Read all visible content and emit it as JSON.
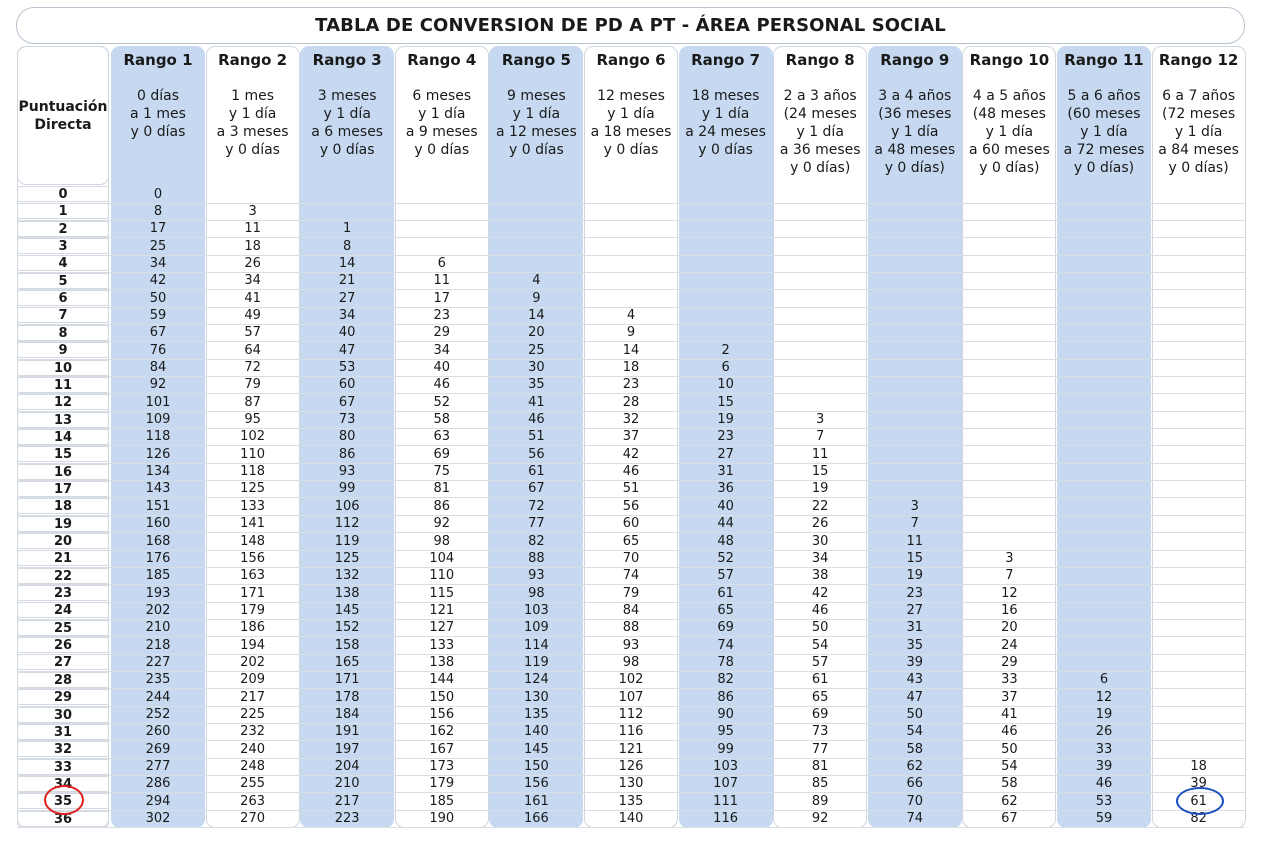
{
  "title": "TABLA DE CONVERSION DE PD A PT - ÁREA PERSONAL SOCIAL",
  "pd_header": "Puntuación\nDirecta",
  "ranges": [
    {
      "label": "Rango 1",
      "age": "0 días\na 1 mes\ny 0 días",
      "start": 0,
      "values": [
        0,
        8,
        17,
        25,
        34,
        42,
        50,
        59,
        67,
        76,
        84,
        92,
        101,
        109,
        118,
        126,
        134,
        143,
        151,
        160,
        168,
        176,
        185,
        193,
        202,
        210,
        218,
        227,
        235,
        244,
        252,
        260,
        269,
        277,
        286,
        294,
        302
      ]
    },
    {
      "label": "Rango 2",
      "age": "1 mes\ny 1 día\na 3 meses\ny 0 días",
      "start": 1,
      "values": [
        3,
        11,
        18,
        26,
        34,
        41,
        49,
        57,
        64,
        72,
        79,
        87,
        95,
        102,
        110,
        118,
        125,
        133,
        141,
        148,
        156,
        163,
        171,
        179,
        186,
        194,
        202,
        209,
        217,
        225,
        232,
        240,
        248,
        255,
        263,
        270
      ]
    },
    {
      "label": "Rango 3",
      "age": "3 meses\ny 1 día\na 6 meses\ny 0 días",
      "start": 2,
      "values": [
        1,
        8,
        14,
        21,
        27,
        34,
        40,
        47,
        53,
        60,
        67,
        73,
        80,
        86,
        93,
        99,
        106,
        112,
        119,
        125,
        132,
        138,
        145,
        152,
        158,
        165,
        171,
        178,
        184,
        191,
        197,
        204,
        210,
        217,
        223
      ]
    },
    {
      "label": "Rango 4",
      "age": "6 meses\ny 1 día\na 9 meses\ny 0 días",
      "start": 4,
      "values": [
        6,
        11,
        17,
        23,
        29,
        34,
        40,
        46,
        52,
        58,
        63,
        69,
        75,
        81,
        86,
        92,
        98,
        104,
        110,
        115,
        121,
        127,
        133,
        138,
        144,
        150,
        156,
        162,
        167,
        173,
        179,
        185,
        190
      ]
    },
    {
      "label": "Rango 5",
      "age": "9 meses\ny 1 día\na 12 meses\ny 0 días",
      "start": 5,
      "values": [
        4,
        9,
        14,
        20,
        25,
        30,
        35,
        41,
        46,
        51,
        56,
        61,
        67,
        72,
        77,
        82,
        88,
        93,
        98,
        103,
        109,
        114,
        119,
        124,
        130,
        135,
        140,
        145,
        150,
        156,
        161,
        166
      ]
    },
    {
      "label": "Rango 6",
      "age": "12 meses\ny 1 día\na 18 meses\ny 0 días",
      "start": 7,
      "values": [
        4,
        9,
        14,
        18,
        23,
        28,
        32,
        37,
        42,
        46,
        51,
        56,
        60,
        65,
        70,
        74,
        79,
        84,
        88,
        93,
        98,
        102,
        107,
        112,
        116,
        121,
        126,
        130,
        135,
        140
      ]
    },
    {
      "label": "Rango 7",
      "age": "18 meses\ny 1 día\na 24 meses\ny 0 días",
      "start": 9,
      "values": [
        2,
        6,
        10,
        15,
        19,
        23,
        27,
        31,
        36,
        40,
        44,
        48,
        52,
        57,
        61,
        65,
        69,
        74,
        78,
        82,
        86,
        90,
        95,
        99,
        103,
        107,
        111,
        116
      ]
    },
    {
      "label": "Rango 8",
      "age": "2 a 3 años\n(24 meses\ny 1 día\na 36 meses\ny 0 días)",
      "start": 13,
      "values": [
        3,
        7,
        11,
        15,
        19,
        22,
        26,
        30,
        34,
        38,
        42,
        46,
        50,
        54,
        57,
        61,
        65,
        69,
        73,
        77,
        81,
        85,
        89,
        92
      ]
    },
    {
      "label": "Rango 9",
      "age": "3 a 4 años\n(36 meses\ny 1 día\na 48 meses\ny 0 días)",
      "start": 18,
      "values": [
        3,
        7,
        11,
        15,
        19,
        23,
        27,
        31,
        35,
        39,
        43,
        47,
        50,
        54,
        58,
        62,
        66,
        70,
        74
      ]
    },
    {
      "label": "Rango 10",
      "age": "4 a 5 años\n(48 meses\ny 1 día\na 60 meses\ny 0 días)",
      "start": 21,
      "values": [
        3,
        7,
        12,
        16,
        20,
        24,
        29,
        33,
        37,
        41,
        46,
        50,
        54,
        58,
        62,
        67
      ]
    },
    {
      "label": "Rango 11",
      "age": "5 a 6 años\n(60 meses\ny 1 día\na 72 meses\ny 0 días)",
      "start": 28,
      "values": [
        6,
        12,
        19,
        26,
        33,
        39,
        46,
        53,
        59
      ]
    },
    {
      "label": "Rango 12",
      "age": "6 a 7 años\n(72 meses\ny 1 día\na 84 meses\ny 0 días)",
      "start": 33,
      "values": [
        18,
        39,
        61,
        82
      ]
    }
  ],
  "pd_values": [
    0,
    1,
    2,
    3,
    4,
    5,
    6,
    7,
    8,
    9,
    10,
    11,
    12,
    13,
    14,
    15,
    16,
    17,
    18,
    19,
    20,
    21,
    22,
    23,
    24,
    25,
    26,
    27,
    28,
    29,
    30,
    31,
    32,
    33,
    34,
    35,
    36
  ],
  "annotations": {
    "pd_circle_value": "35",
    "pd_circle_color": "#e02020",
    "pt_circle_value": "61",
    "pt_circle_color": "#1a4fc4"
  },
  "colors": {
    "blue_column": "#c6d9f1",
    "row_shade": "#c9cfd7",
    "border": "#cfd6df"
  }
}
